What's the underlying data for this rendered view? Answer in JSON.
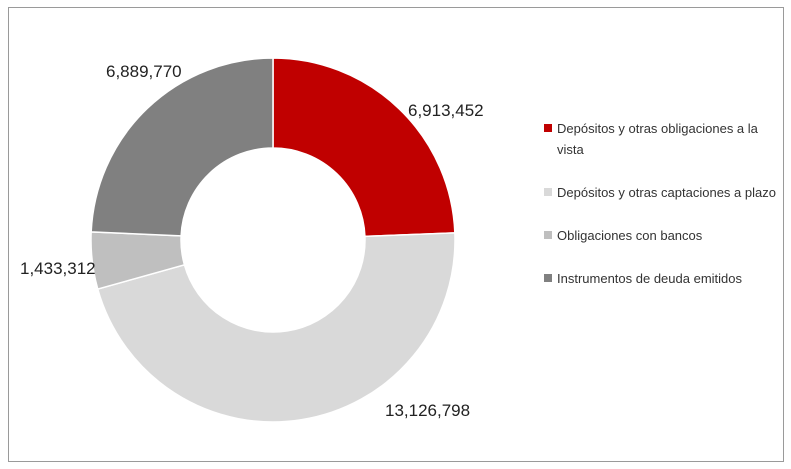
{
  "chart_data": {
    "type": "pie",
    "variant": "donut",
    "title": "",
    "legend_position": "right",
    "labels": [
      "Depósitos y otras obligaciones a la vista",
      "Depósitos y otras captaciones a plazo",
      "Obligaciones con bancos",
      "Instrumentos de deuda emitidos"
    ],
    "values": [
      6913452,
      13126798,
      1433312,
      6889770
    ],
    "value_labels": [
      "6,913,452",
      "13,126,798",
      "1,433,312",
      "6,889,770"
    ],
    "colors": [
      "#c00000",
      "#d9d9d9",
      "#bfbfbf",
      "#808080"
    ]
  }
}
